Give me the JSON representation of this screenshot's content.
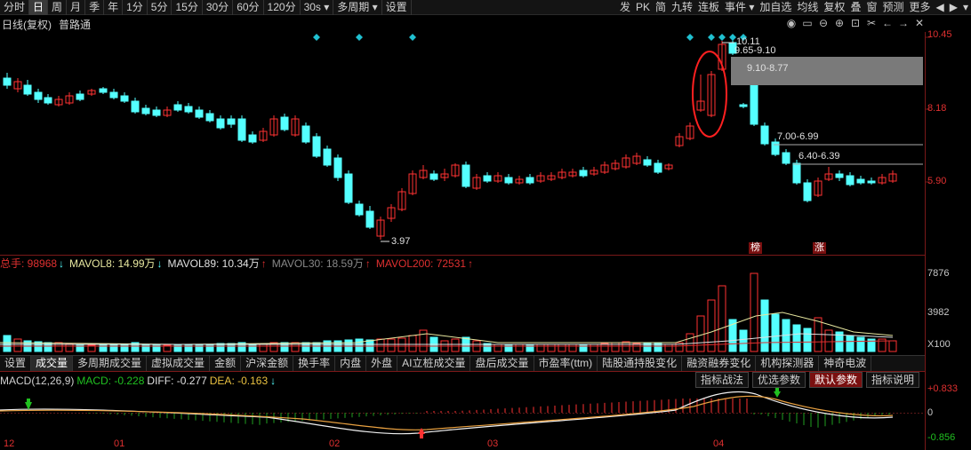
{
  "toolbar": {
    "nav": [
      "分时",
      "日",
      "周",
      "月",
      "季",
      "年",
      "1分",
      "5分",
      "15分",
      "30分",
      "60分",
      "120分",
      "30s",
      "多周期",
      "设置"
    ],
    "active": "日",
    "right": [
      "发",
      "PK",
      "简",
      "九转",
      "连板",
      "事件",
      "加自选",
      "均线",
      "复权",
      "叠",
      "窗",
      "预测",
      "更多"
    ]
  },
  "title": {
    "period": "日线(复权)",
    "stock": "普路通"
  },
  "price_axis": {
    "labels": [
      "10.45",
      "8.18",
      "5.90"
    ]
  },
  "annotations": {
    "high": "10.11",
    "low": "3.97",
    "gaps": [
      "9.65-9.10",
      "9.10-8.77",
      "7.00-6.99",
      "6.40-6.39"
    ],
    "badges": [
      "榜",
      "涨"
    ]
  },
  "volume": {
    "total": "总手: 98968",
    "mavol8": "MAVOL8: 14.99万",
    "mavol89": "MAVOL89: 10.34万",
    "mavol30": "MAVOL30: 18.59万",
    "mavol200": "MAVOL200: 72531",
    "axis": [
      "7876",
      "3982",
      "X100"
    ]
  },
  "tabs": [
    "设置",
    "成交量",
    "多周期成交量",
    "虚拟成交量",
    "金额",
    "沪深金额",
    "换手率",
    "内盘",
    "外盘",
    "AI立桩成交量",
    "盘后成交量",
    "市盈率(ttm)",
    "陆股通持股变化",
    "融资融券变化",
    "机构探测器",
    "神奇电波"
  ],
  "active_tab": "成交量",
  "macd": {
    "name": "MACD(12,26,9)",
    "macd": "MACD: -0.228",
    "diff": "DIFF: -0.277",
    "dea": "DEA: -0.163",
    "buttons": [
      "指标战法",
      "优选参数",
      "默认参数",
      "指标说明"
    ],
    "axis": [
      "+0.833",
      "0",
      "-0.856"
    ]
  },
  "dates": [
    "12",
    "01",
    "02",
    "03",
    "04"
  ],
  "colors": {
    "up": "#ff3232",
    "down": "#54ffff",
    "bg": "#000000",
    "grid": "#7a1818"
  }
}
